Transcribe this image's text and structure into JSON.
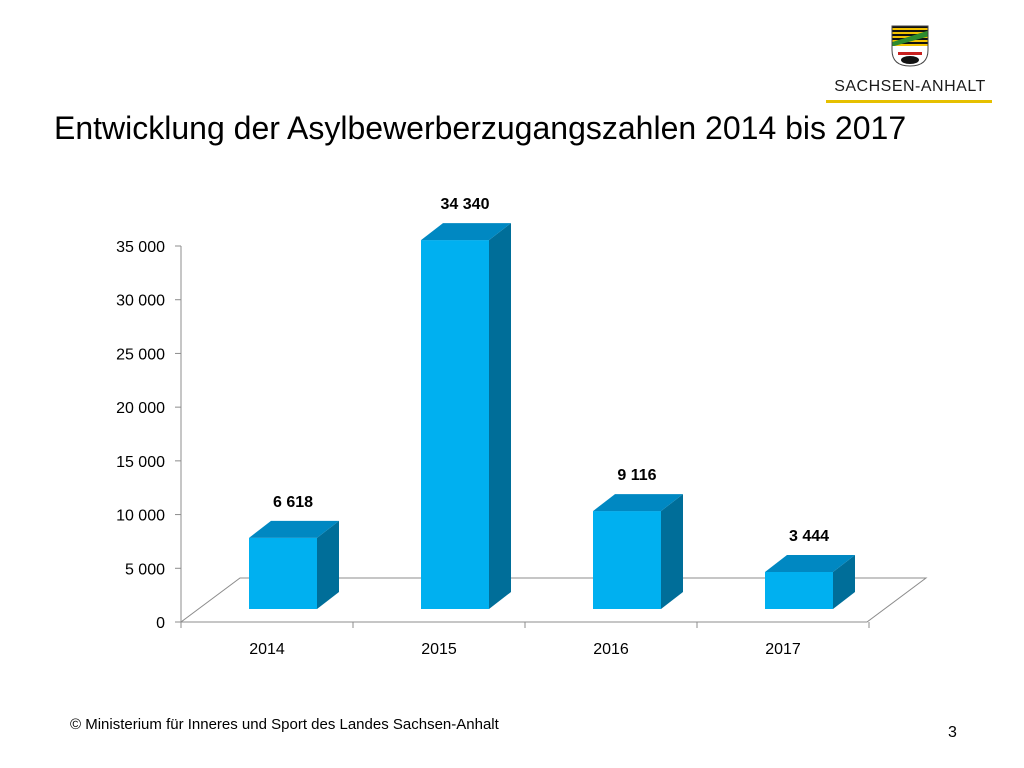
{
  "logo": {
    "text": "SACHSEN-ANHALT",
    "rule_color": "#e6c000",
    "shield_colors": [
      "#111111",
      "#f2c200",
      "#2e8b2e",
      "#c8201f",
      "#ffffff"
    ]
  },
  "slide": {
    "title": "Entwicklung der Asylbewerberzugangszahlen 2014 bis 2017",
    "footer": "© Ministerium für Inneres und Sport des Landes Sachsen-Anhalt",
    "page_number": "3"
  },
  "chart_data": {
    "type": "bar",
    "style": "3d",
    "title": "",
    "xlabel": "",
    "ylabel": "",
    "categories": [
      "2014",
      "2015",
      "2016",
      "2017"
    ],
    "values": [
      6618,
      34340,
      9116,
      3444
    ],
    "data_labels": [
      "6 618",
      "34 340",
      "9 116",
      "3 444"
    ],
    "ylim": [
      0,
      35000
    ],
    "yticks": [
      0,
      5000,
      10000,
      15000,
      20000,
      25000,
      30000,
      35000
    ],
    "ytick_labels": [
      "0",
      "5 000",
      "10 000",
      "15 000",
      "20 000",
      "25 000",
      "30 000",
      "35 000"
    ],
    "grid": false,
    "legend": "none",
    "colors": {
      "front": "#00b0f0",
      "side": "#006e99",
      "top": "#0088c2",
      "floor": "#8c8c8c"
    }
  }
}
